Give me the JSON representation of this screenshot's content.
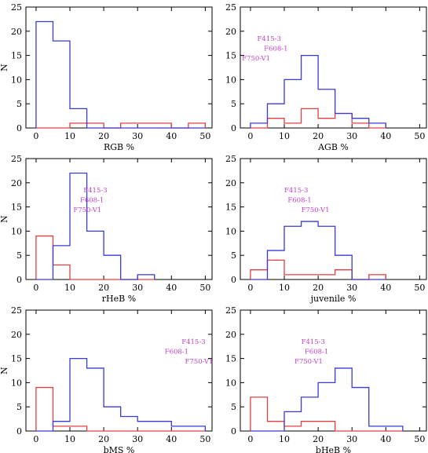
{
  "colors": {
    "blue": "#3a3ad6",
    "red": "#e04040",
    "annotation": "#c040c8"
  },
  "chart_data": [
    {
      "type": "histogram",
      "xlabel": "RGB %",
      "ylabel": "N",
      "xlim": [
        -3,
        52
      ],
      "ylim": [
        0,
        25
      ],
      "xticks": [
        0,
        10,
        20,
        30,
        40,
        50
      ],
      "yticks": [
        0,
        5,
        10,
        15,
        20,
        25
      ],
      "bin_edges": [
        0,
        5,
        10,
        15,
        20,
        25,
        30,
        35,
        40,
        45,
        50
      ],
      "series": [
        {
          "color": "blue",
          "values": [
            22,
            18,
            4,
            0,
            0,
            0,
            0,
            0,
            0,
            0
          ]
        },
        {
          "color": "red",
          "values": [
            0,
            0,
            1,
            1,
            0,
            1,
            1,
            1,
            0,
            1
          ]
        }
      ],
      "annotations": []
    },
    {
      "type": "histogram",
      "xlabel": "AGB %",
      "ylabel": "",
      "xlim": [
        -3,
        52
      ],
      "ylim": [
        0,
        25
      ],
      "xticks": [
        0,
        10,
        20,
        30,
        40,
        50
      ],
      "yticks": [
        0,
        5,
        10,
        15,
        20,
        25
      ],
      "bin_edges": [
        0,
        5,
        10,
        15,
        20,
        25,
        30,
        35,
        40
      ],
      "series": [
        {
          "color": "blue",
          "values": [
            1,
            5,
            10,
            15,
            8,
            3,
            2,
            1
          ]
        },
        {
          "color": "red",
          "values": [
            0,
            2,
            1,
            4,
            2,
            3,
            1,
            0
          ]
        }
      ],
      "annotations": [
        {
          "text": "F415-3",
          "x": 2,
          "y": 18
        },
        {
          "text": "F608-1",
          "x": 4,
          "y": 16
        },
        {
          "text": "F750-V1",
          "x": -2.5,
          "y": 14
        }
      ]
    },
    {
      "type": "histogram",
      "xlabel": "rHeB %",
      "ylabel": "N",
      "xlim": [
        -3,
        52
      ],
      "ylim": [
        0,
        25
      ],
      "xticks": [
        0,
        10,
        20,
        30,
        40,
        50
      ],
      "yticks": [
        0,
        5,
        10,
        15,
        20,
        25
      ],
      "bin_edges": [
        0,
        5,
        10,
        15,
        20,
        25,
        30,
        35
      ],
      "series": [
        {
          "color": "blue",
          "values": [
            0,
            7,
            22,
            10,
            5,
            0,
            1
          ]
        },
        {
          "color": "red",
          "values": [
            9,
            3,
            0,
            0,
            0,
            0,
            0
          ]
        }
      ],
      "annotations": [
        {
          "text": "F415-3",
          "x": 14,
          "y": 18
        },
        {
          "text": "F608-1",
          "x": 13,
          "y": 16
        },
        {
          "text": "F750-V1",
          "x": 11,
          "y": 14
        }
      ]
    },
    {
      "type": "histogram",
      "xlabel": "juvenile %",
      "ylabel": "",
      "xlim": [
        -3,
        52
      ],
      "ylim": [
        0,
        25
      ],
      "xticks": [
        0,
        10,
        20,
        30,
        40,
        50
      ],
      "yticks": [
        0,
        5,
        10,
        15,
        20,
        25
      ],
      "bin_edges": [
        0,
        5,
        10,
        15,
        20,
        25,
        30,
        35,
        40
      ],
      "series": [
        {
          "color": "blue",
          "values": [
            0,
            6,
            11,
            12,
            11,
            5,
            0,
            0
          ]
        },
        {
          "color": "red",
          "values": [
            2,
            4,
            1,
            1,
            1,
            2,
            0,
            1
          ]
        }
      ],
      "annotations": [
        {
          "text": "F415-3",
          "x": 10,
          "y": 18
        },
        {
          "text": "F608-1",
          "x": 11,
          "y": 16
        },
        {
          "text": "F750-V1",
          "x": 15,
          "y": 14
        }
      ]
    },
    {
      "type": "histogram",
      "xlabel": "bMS %",
      "ylabel": "N",
      "xlim": [
        -3,
        52
      ],
      "ylim": [
        0,
        25
      ],
      "xticks": [
        0,
        10,
        20,
        30,
        40,
        50
      ],
      "yticks": [
        0,
        5,
        10,
        15,
        20,
        25
      ],
      "bin_edges": [
        0,
        5,
        10,
        15,
        20,
        25,
        30,
        35,
        40,
        45,
        50
      ],
      "series": [
        {
          "color": "blue",
          "values": [
            0,
            2,
            15,
            13,
            5,
            3,
            2,
            2,
            1,
            1
          ]
        },
        {
          "color": "red",
          "values": [
            9,
            1,
            1,
            0,
            0,
            0,
            0,
            0,
            0,
            0
          ]
        }
      ],
      "annotations": [
        {
          "text": "F415-3",
          "x": 43,
          "y": 18
        },
        {
          "text": "F608-1",
          "x": 38,
          "y": 16
        },
        {
          "text": "F750-V1",
          "x": 44,
          "y": 14
        }
      ]
    },
    {
      "type": "histogram",
      "xlabel": "bHeB %",
      "ylabel": "",
      "xlim": [
        -3,
        52
      ],
      "ylim": [
        0,
        25
      ],
      "xticks": [
        0,
        10,
        20,
        30,
        40,
        50
      ],
      "yticks": [
        0,
        5,
        10,
        15,
        20,
        25
      ],
      "bin_edges": [
        0,
        5,
        10,
        15,
        20,
        25,
        30,
        35,
        40,
        45
      ],
      "series": [
        {
          "color": "blue",
          "values": [
            0,
            0,
            4,
            7,
            10,
            13,
            9,
            1,
            1
          ]
        },
        {
          "color": "red",
          "values": [
            7,
            2,
            1,
            2,
            2,
            0,
            0,
            0,
            0
          ]
        }
      ],
      "annotations": [
        {
          "text": "F415-3",
          "x": 15,
          "y": 18
        },
        {
          "text": "F608-1",
          "x": 16,
          "y": 16
        },
        {
          "text": "F750-V1",
          "x": 13,
          "y": 14
        }
      ]
    }
  ]
}
